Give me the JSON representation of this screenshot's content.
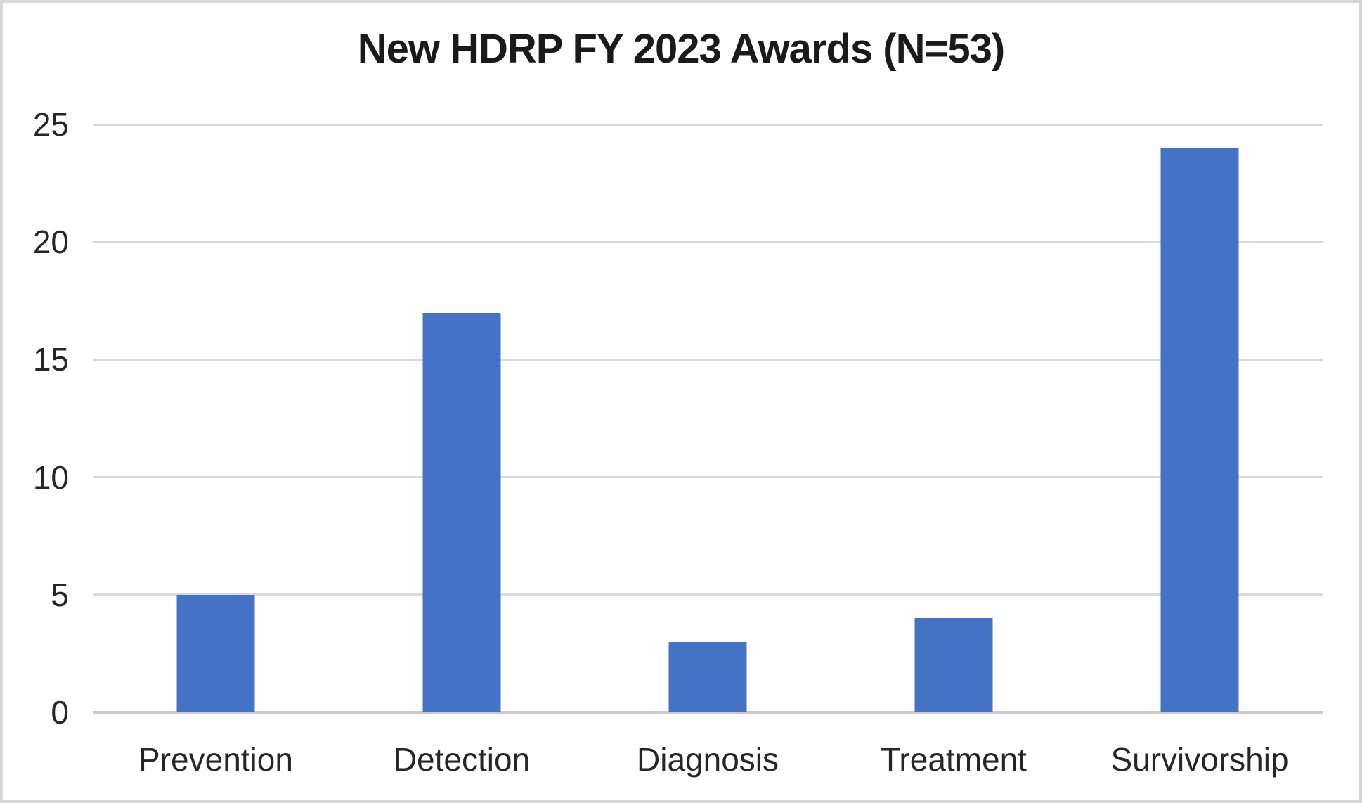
{
  "chart_data": {
    "type": "bar",
    "title": "New HDRP FY 2023 Awards (N=53)",
    "total_n_in_title": 53,
    "categories": [
      "Prevention",
      "Detection",
      "Diagnosis",
      "Treatment",
      "Survivorship"
    ],
    "values": [
      5,
      17,
      3,
      4,
      24
    ],
    "xlabel": "",
    "ylabel": "",
    "ylim": [
      0,
      25
    ],
    "yticks": [
      0,
      5,
      10,
      15,
      20,
      25
    ],
    "grid": "horizontal",
    "legend_position": "none",
    "colors": {
      "bar_fill": "#4472C4",
      "gridline": "#D9D9D9",
      "axis_baseline": "#CCCACA",
      "tick_text": "#262626",
      "title_text": "#1A1A1A",
      "frame_border": "#D6D6D6",
      "background": "#FFFFFF"
    }
  }
}
